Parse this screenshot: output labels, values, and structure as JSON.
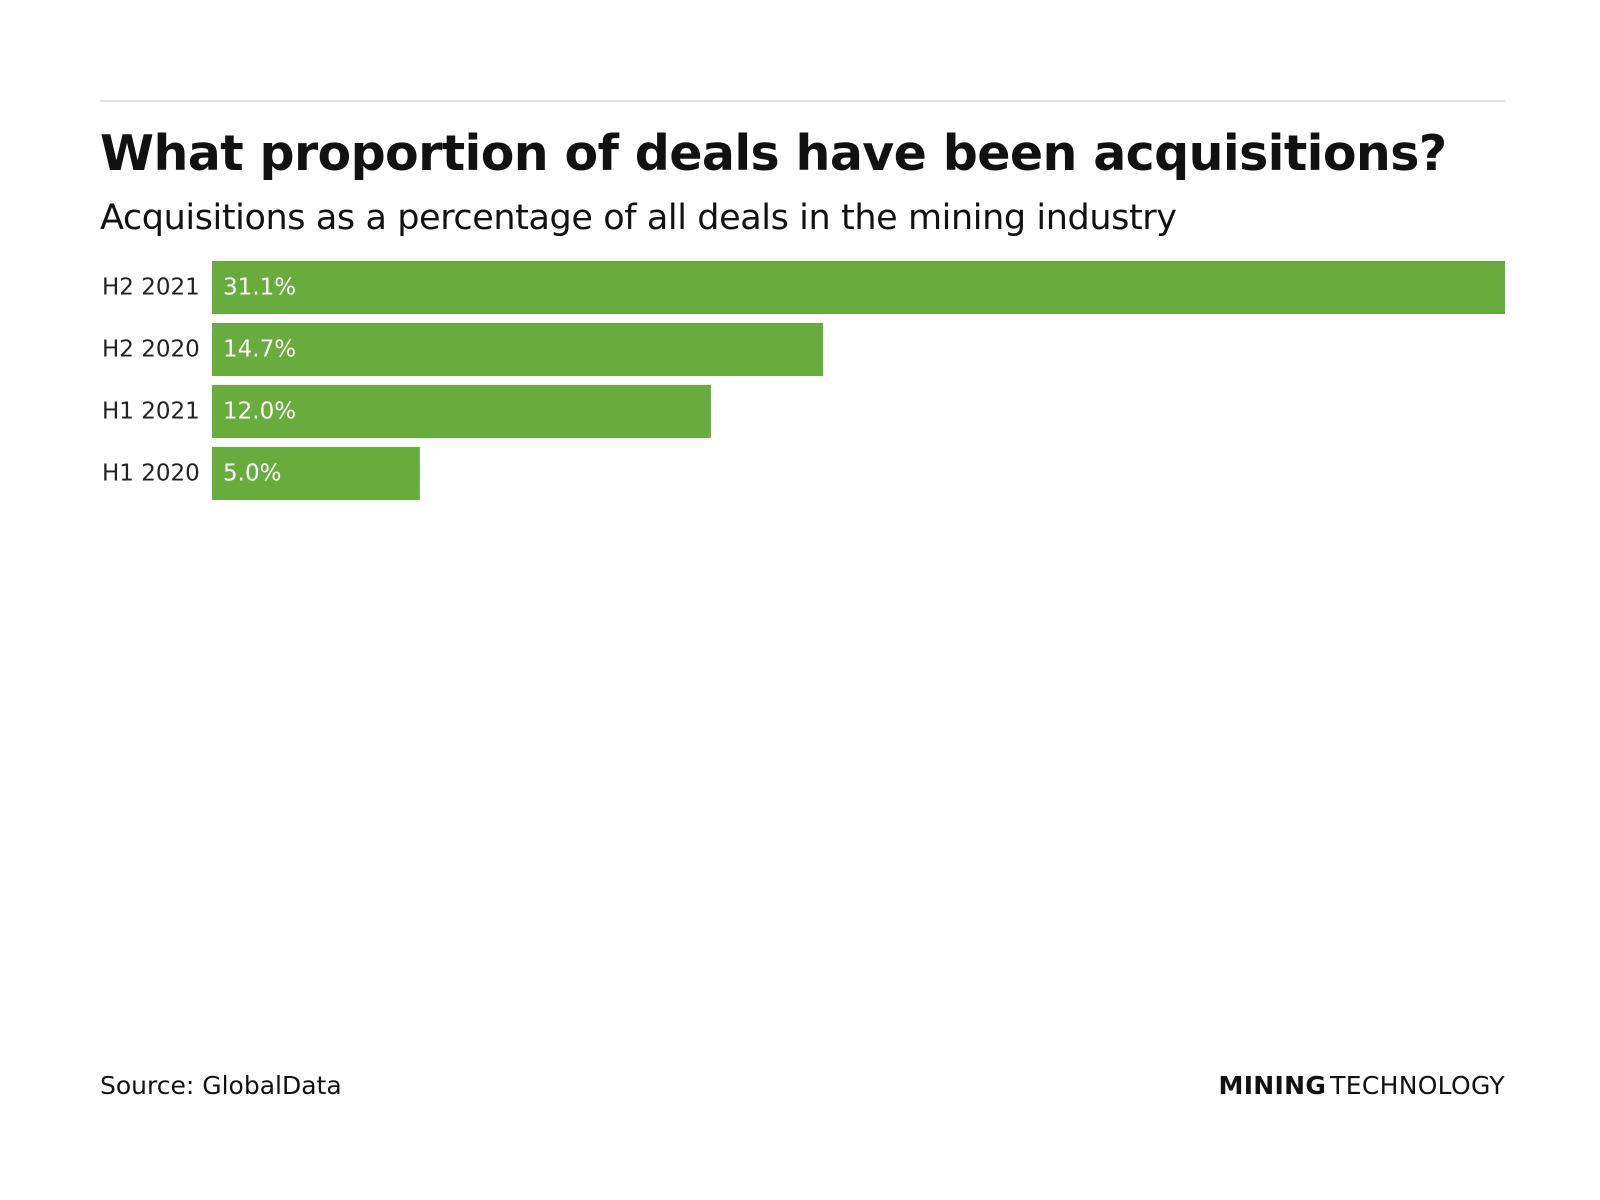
{
  "header": {
    "title": "What proportion of deals have been acquisitions?",
    "subtitle": "Acquisitions as a percentage of all deals in the mining industry"
  },
  "chart_data": {
    "type": "bar",
    "orientation": "horizontal",
    "title": "What proportion of deals have been acquisitions?",
    "subtitle": "Acquisitions as a percentage of all deals in the mining industry",
    "categories": [
      "H2 2021",
      "H2 2020",
      "H1 2021",
      "H1 2020"
    ],
    "values": [
      31.1,
      14.7,
      12.0,
      5.0
    ],
    "data_labels": [
      "31.1%",
      "14.7%",
      "12.0%",
      "5.0%"
    ],
    "unit": "%",
    "xlim": [
      0,
      31.1
    ],
    "grid": false,
    "legend": "none",
    "bar_color": "#68ac3e",
    "label_color": "#ffffff"
  },
  "footer": {
    "source": "Source: GlobalData",
    "brand_bold": "MINING",
    "brand_light": "TECHNOLOGY"
  }
}
